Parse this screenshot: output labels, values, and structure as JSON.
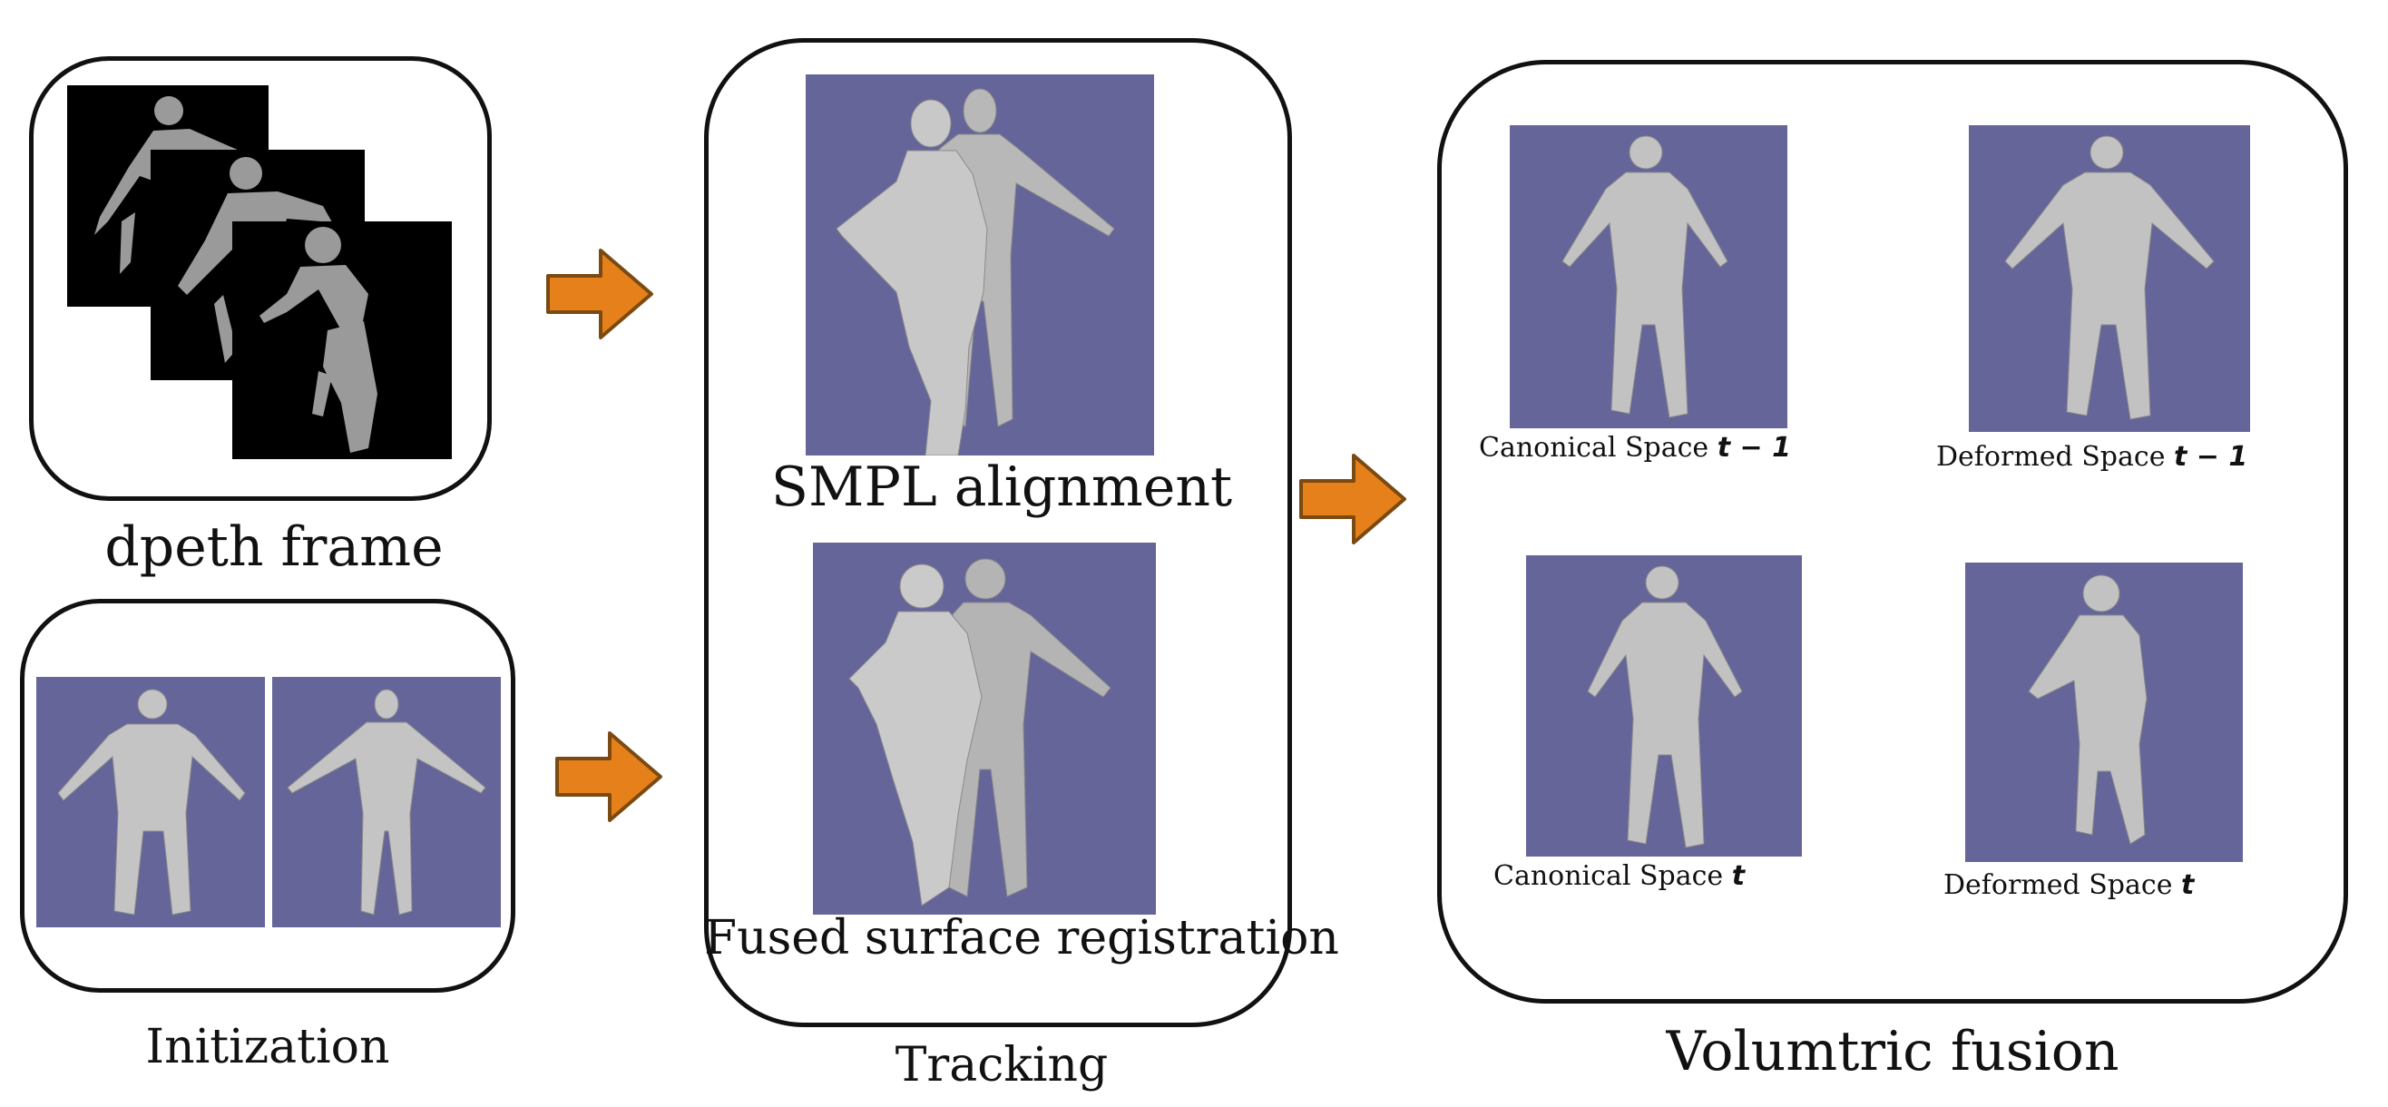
{
  "labels": {
    "depth_frame": "dpeth frame",
    "initialization": "Initization",
    "smpl_alignment": "SMPL alignment",
    "fused_registration": "Fused surface registration",
    "tracking": "Tracking",
    "volumetric_fusion": "Volumtric fusion",
    "canonical_prev": "Canonical Space",
    "canonical_prev_sym": "t − 1",
    "deformed_prev": "Deformed Space",
    "deformed_prev_sym": "t − 1",
    "canonical_cur": "Canonical Space",
    "canonical_cur_sym": "t",
    "deformed_cur": "Deformed Space",
    "deformed_cur_sym": "t"
  },
  "colors": {
    "panel": "#65659a",
    "arrow_fill": "#e6801a",
    "arrow_stroke": "#7a4a12",
    "mesh": "#c4c4c4",
    "depth_fg": "#9a9a9a"
  },
  "icons": {
    "flow_arrow": "right-block-arrow"
  }
}
